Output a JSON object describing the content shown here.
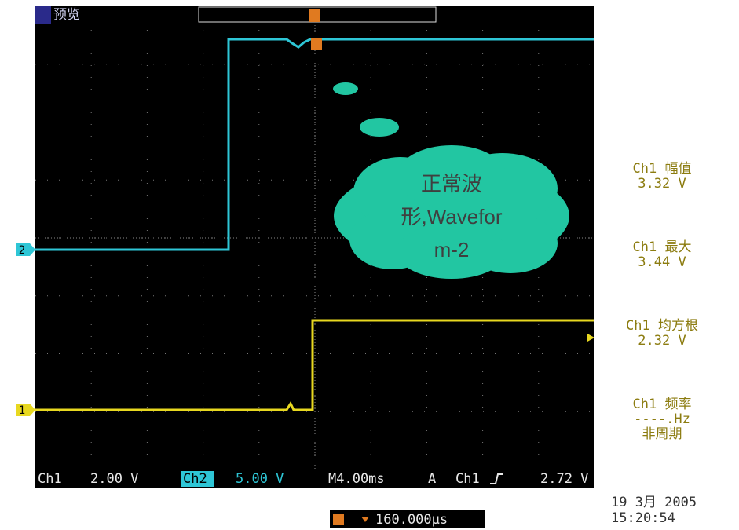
{
  "header": {
    "mode": "预览"
  },
  "markers": {
    "ch2": "2",
    "ch1": "1"
  },
  "callout": {
    "lines": [
      "正常波",
      "形,Wavefor",
      "m-2"
    ]
  },
  "measurements": [
    {
      "lines": [
        "Ch1 幅值",
        "3.32 V"
      ]
    },
    {
      "lines": [
        "Ch1 最大",
        "3.44 V"
      ]
    },
    {
      "lines": [
        "Ch1 均方根",
        "2.32 V"
      ]
    },
    {
      "lines": [
        "Ch1 频率",
        "----.Hz",
        "非周期"
      ]
    }
  ],
  "status_bar": {
    "ch1": "Ch1",
    "ch1_scale": "2.00 V",
    "ch2": "Ch2",
    "ch2_scale": "5.00 V",
    "timebase": "M4.00ms",
    "trigger_mode": "A",
    "trigger_source": "Ch1",
    "trigger_level": "2.72 V"
  },
  "position": "160.000µs",
  "date": "19 3月  2005",
  "time": "15:20:54"
}
